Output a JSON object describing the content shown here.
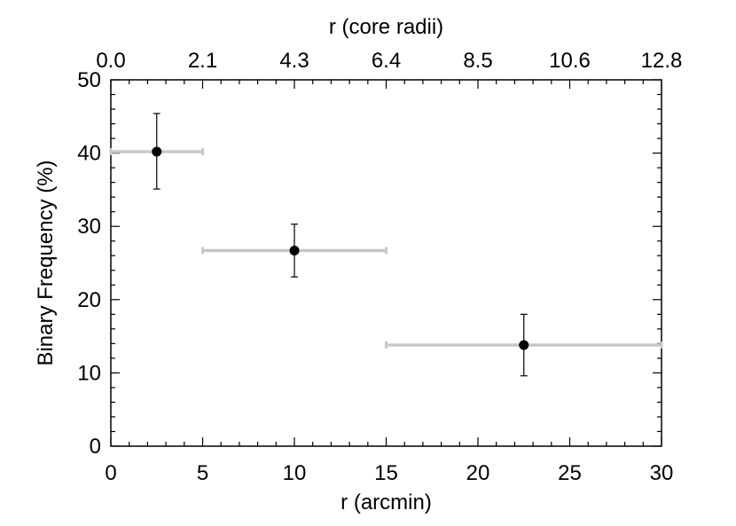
{
  "chart_data": {
    "type": "scatter",
    "xlabel": "r (arcmin)",
    "ylabel": "Binary Frequency (%)",
    "top_xlabel": "r (core radii)",
    "xlim": [
      0,
      30
    ],
    "ylim": [
      0,
      50
    ],
    "x_ticks": [
      0,
      5,
      10,
      15,
      20,
      25,
      30
    ],
    "x_tick_labels": [
      "0",
      "5",
      "10",
      "15",
      "20",
      "25",
      "30"
    ],
    "y_ticks": [
      0,
      10,
      20,
      30,
      40,
      50
    ],
    "y_tick_labels": [
      "0",
      "10",
      "20",
      "30",
      "40",
      "50"
    ],
    "top_x_ticks": [
      0,
      5,
      10,
      15,
      20,
      25,
      30
    ],
    "top_x_tick_labels": [
      "0.0",
      "2.1",
      "4.3",
      "6.4",
      "8.5",
      "10.6",
      "12.8"
    ],
    "grid": false,
    "points": [
      {
        "x": 2.5,
        "y": 40.2,
        "x_low": 0,
        "x_high": 5,
        "y_low": 35.1,
        "y_high": 45.4
      },
      {
        "x": 10,
        "y": 26.7,
        "x_low": 5,
        "x_high": 15,
        "y_low": 23.1,
        "y_high": 30.3
      },
      {
        "x": 22.5,
        "y": 13.8,
        "x_low": 15,
        "x_high": 30,
        "y_low": 9.6,
        "y_high": 18.0
      }
    ],
    "colors": {
      "marker": "#000000",
      "x_error_bar": "#c8c8c8",
      "y_error_bar": "#000000",
      "axes": "#000000"
    }
  }
}
